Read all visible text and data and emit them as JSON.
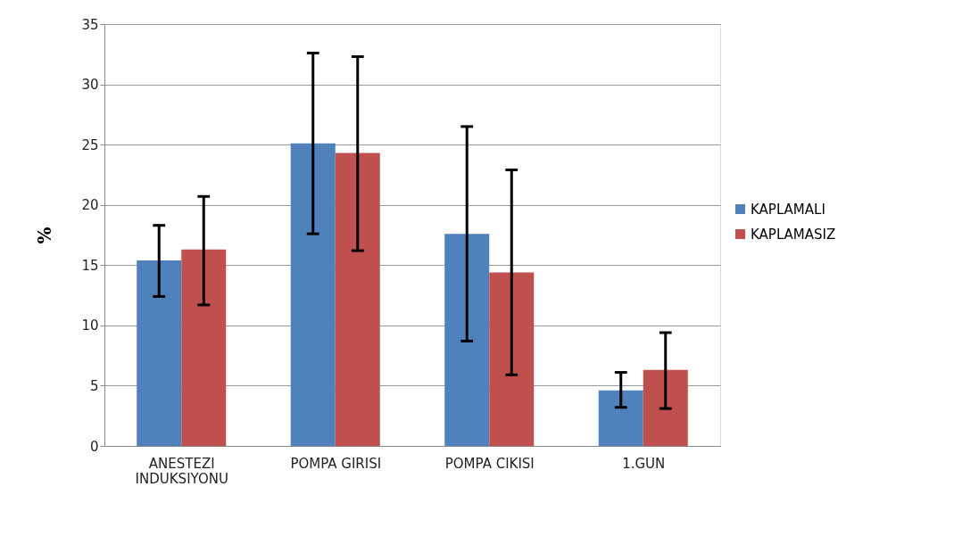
{
  "chart_data": {
    "type": "bar",
    "ylabel": "%",
    "categories": [
      "ANESTEZI INDUKSIYONU",
      "POMPA GIRISI",
      "POMPA CIKISI",
      "1.GUN"
    ],
    "series": [
      {
        "name": "KAPLAMALI",
        "color": "#4f81bd",
        "values": [
          15.4,
          25.1,
          17.6,
          4.6
        ],
        "errors": [
          [
            12.4,
            18.3
          ],
          [
            17.6,
            32.6
          ],
          [
            8.7,
            26.5
          ],
          [
            3.2,
            6.1
          ]
        ]
      },
      {
        "name": "KAPLAMASIZ",
        "color": "#c0504d",
        "values": [
          16.3,
          24.3,
          14.4,
          6.3
        ],
        "errors": [
          [
            11.7,
            20.7
          ],
          [
            16.2,
            32.3
          ],
          [
            5.9,
            22.9
          ],
          [
            3.1,
            9.4
          ]
        ]
      }
    ],
    "ylim": [
      0,
      35
    ],
    "yticks": [
      0,
      5,
      10,
      15,
      20,
      25,
      30,
      35
    ],
    "grid": "y",
    "legend": "right"
  }
}
